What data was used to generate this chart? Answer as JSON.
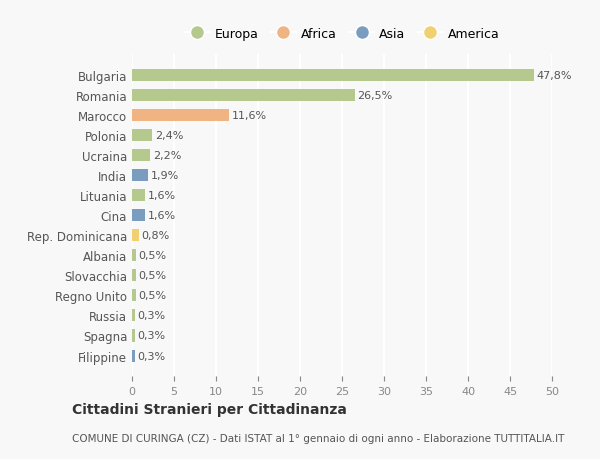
{
  "categories": [
    "Bulgaria",
    "Romania",
    "Marocco",
    "Polonia",
    "Ucraina",
    "India",
    "Lituania",
    "Cina",
    "Rep. Dominicana",
    "Albania",
    "Slovacchia",
    "Regno Unito",
    "Russia",
    "Spagna",
    "Filippine"
  ],
  "values": [
    47.8,
    26.5,
    11.6,
    2.4,
    2.2,
    1.9,
    1.6,
    1.6,
    0.8,
    0.5,
    0.5,
    0.5,
    0.3,
    0.3,
    0.3
  ],
  "labels": [
    "47,8%",
    "26,5%",
    "11,6%",
    "2,4%",
    "2,2%",
    "1,9%",
    "1,6%",
    "1,6%",
    "0,8%",
    "0,5%",
    "0,5%",
    "0,5%",
    "0,3%",
    "0,3%",
    "0,3%"
  ],
  "colors": [
    "#b5c98e",
    "#b5c98e",
    "#f0b482",
    "#b5c98e",
    "#b5c98e",
    "#7a9dbf",
    "#b5c98e",
    "#7a9dbf",
    "#f0d070",
    "#b5c98e",
    "#b5c98e",
    "#b5c98e",
    "#b5c98e",
    "#b5c98e",
    "#7a9dbf"
  ],
  "legend_labels": [
    "Europa",
    "Africa",
    "Asia",
    "America"
  ],
  "legend_colors": [
    "#b5c98e",
    "#f0b482",
    "#7a9dbf",
    "#f0d070"
  ],
  "xlim": [
    0,
    50
  ],
  "xticks": [
    0,
    5,
    10,
    15,
    20,
    25,
    30,
    35,
    40,
    45,
    50
  ],
  "title": "Cittadini Stranieri per Cittadinanza",
  "subtitle": "COMUNE DI CURINGA (CZ) - Dati ISTAT al 1° gennaio di ogni anno - Elaborazione TUTTITALIA.IT",
  "background_color": "#f8f8f8",
  "grid_color": "#ffffff",
  "bar_height": 0.6
}
